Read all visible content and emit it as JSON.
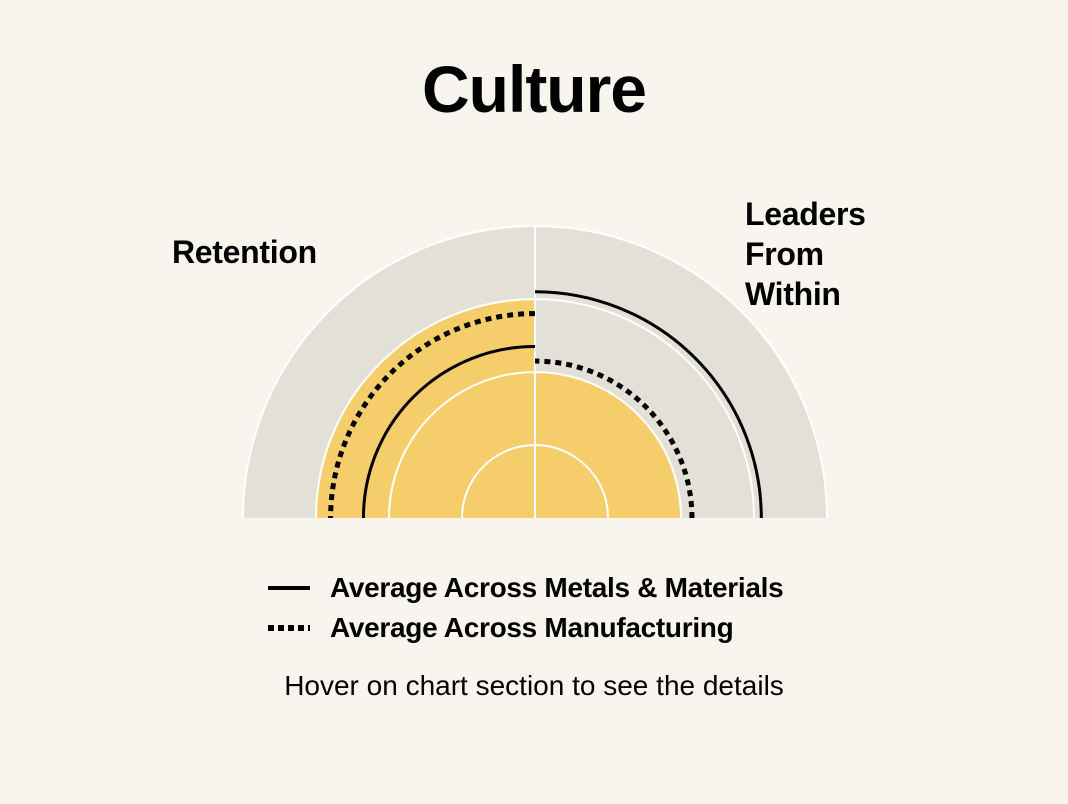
{
  "title": "Culture",
  "hint": "Hover on chart section to see the details",
  "chart_data": {
    "type": "polar-bar",
    "title": "Culture",
    "categories": [
      "Retention",
      "Leaders From Within"
    ],
    "category_display": {
      "left": "Retention",
      "right_lines": [
        "Leaders",
        "From",
        "Within"
      ]
    },
    "scale_max": 4,
    "ring_levels": [
      1,
      2,
      3,
      4
    ],
    "values": [
      3,
      2
    ],
    "benchmarks": [
      {
        "name": "Average Across Metals & Materials",
        "style": "solid",
        "values": [
          2.35,
          3.1
        ]
      },
      {
        "name": "Average Across Manufacturing",
        "style": "dotted",
        "values": [
          2.8,
          2.15
        ]
      }
    ],
    "colors": {
      "background_track": "#e3e0d8",
      "value_fill": "#f6cd6b",
      "ring_lines": "#ffffff",
      "benchmark_lines": "#000000",
      "page_background": "#f8f5ee"
    }
  }
}
